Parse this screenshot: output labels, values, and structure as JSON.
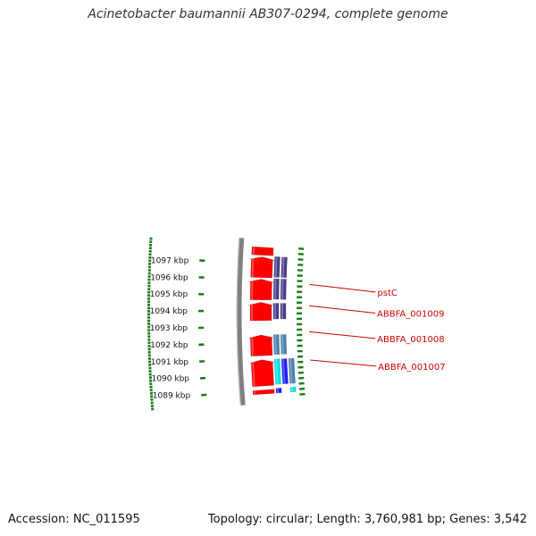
{
  "title": "Acinetobacter baumannii AB307-0294, complete genome",
  "accession_text": "Accession: NC_011595",
  "summary_text": "Topology: circular; Length: 3,760,981 bp; Genes: 3,542",
  "colors": {
    "backbone": "#808080",
    "cds_forward": "#ff0000",
    "cds_blue": "#1a1aff",
    "cds_cyan": "#00e5e5",
    "cds_steel": "#4682b4",
    "cds_purple": "#483d8b",
    "gc_tick": "#1a7a1a",
    "gene_label": "#cc0000"
  },
  "scale_labels": [
    {
      "kbp": 1089,
      "text": "1089 kbp"
    },
    {
      "kbp": 1090,
      "text": "1090 kbp"
    },
    {
      "kbp": 1091,
      "text": "1091 kbp"
    },
    {
      "kbp": 1092,
      "text": "1092 kbp"
    },
    {
      "kbp": 1093,
      "text": "1093 kbp"
    },
    {
      "kbp": 1094,
      "text": "1094 kbp"
    },
    {
      "kbp": 1095,
      "text": "1095 kbp"
    },
    {
      "kbp": 1096,
      "text": "1096 kbp"
    },
    {
      "kbp": 1097,
      "text": "1097 kbp"
    }
  ],
  "gene_labels": [
    {
      "name": "ABBFA_001007",
      "kbp": 1090.8
    },
    {
      "name": "ABBFA_001008",
      "kbp": 1092.65
    },
    {
      "name": "ABBFA_001009",
      "kbp": 1094.35
    },
    {
      "name": "pstC",
      "kbp": 1095.75
    }
  ],
  "features": [
    {
      "track": "cds",
      "start": 1088.8,
      "end": 1089.05,
      "color_key": "cds_forward",
      "arrow": false
    },
    {
      "track": "cds",
      "start": 1089.3,
      "end": 1090.95,
      "color_key": "cds_forward",
      "arrow": true
    },
    {
      "track": "cds",
      "start": 1091.2,
      "end": 1092.5,
      "color_key": "cds_forward",
      "arrow": true
    },
    {
      "track": "cds",
      "start": 1093.4,
      "end": 1094.55,
      "color_key": "cds_forward",
      "arrow": true
    },
    {
      "track": "cds",
      "start": 1094.7,
      "end": 1096.0,
      "color_key": "cds_forward",
      "arrow": true
    },
    {
      "track": "cds",
      "start": 1096.1,
      "end": 1097.4,
      "color_key": "cds_forward",
      "arrow": true
    },
    {
      "track": "cds",
      "start": 1097.5,
      "end": 1098.0,
      "color_key": "cds_forward",
      "arrow": false
    },
    {
      "track": "inner1",
      "start": 1088.8,
      "end": 1089.1,
      "color_key": "cds_blue"
    },
    {
      "track": "inner1",
      "start": 1089.35,
      "end": 1090.95,
      "color_key": "cds_cyan"
    },
    {
      "track": "inner2",
      "start": 1089.35,
      "end": 1090.95,
      "color_key": "cds_blue"
    },
    {
      "track": "inner3",
      "start": 1088.8,
      "end": 1089.1,
      "color_key": "cds_cyan"
    },
    {
      "track": "inner3",
      "start": 1089.35,
      "end": 1090.95,
      "color_key": "cds_steel"
    },
    {
      "track": "inner1",
      "start": 1091.25,
      "end": 1092.5,
      "color_key": "cds_steel"
    },
    {
      "track": "inner2",
      "start": 1091.25,
      "end": 1092.5,
      "color_key": "cds_steel"
    },
    {
      "track": "inner1",
      "start": 1093.5,
      "end": 1094.5,
      "color_key": "cds_purple"
    },
    {
      "track": "inner2",
      "start": 1093.5,
      "end": 1094.5,
      "color_key": "cds_purple"
    },
    {
      "track": "inner1",
      "start": 1094.75,
      "end": 1096.05,
      "color_key": "cds_purple"
    },
    {
      "track": "inner2",
      "start": 1094.75,
      "end": 1096.05,
      "color_key": "cds_purple"
    },
    {
      "track": "inner1",
      "start": 1096.15,
      "end": 1097.45,
      "color_key": "cds_purple"
    },
    {
      "track": "inner2",
      "start": 1096.15,
      "end": 1097.45,
      "color_key": "cds_purple"
    }
  ]
}
